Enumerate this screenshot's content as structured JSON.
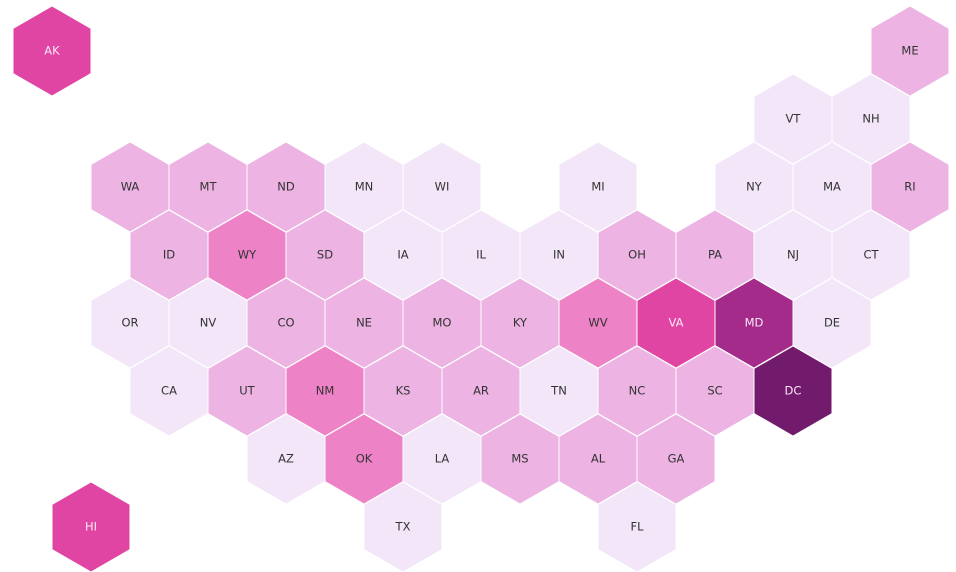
{
  "states": [
    {
      "label": "AK",
      "color": "#e045a3"
    },
    {
      "label": "ME",
      "color": "#ecb3e3"
    },
    {
      "label": "VT",
      "color": "#f2e6f8"
    },
    {
      "label": "NH",
      "color": "#f2e6f8"
    },
    {
      "label": "WA",
      "color": "#ecb3e3"
    },
    {
      "label": "MT",
      "color": "#ecb3e3"
    },
    {
      "label": "ND",
      "color": "#ecb3e3"
    },
    {
      "label": "MN",
      "color": "#f2e6f8"
    },
    {
      "label": "WI",
      "color": "#f2e6f8"
    },
    {
      "label": "MI",
      "color": "#f2e6f8"
    },
    {
      "label": "NY",
      "color": "#f2e6f8"
    },
    {
      "label": "MA",
      "color": "#f2e6f8"
    },
    {
      "label": "RI",
      "color": "#ecb3e3"
    },
    {
      "label": "ID",
      "color": "#ecb3e3"
    },
    {
      "label": "WY",
      "color": "#ee82c6"
    },
    {
      "label": "SD",
      "color": "#ecb3e3"
    },
    {
      "label": "IA",
      "color": "#f2e6f8"
    },
    {
      "label": "IL",
      "color": "#f2e6f8"
    },
    {
      "label": "IN",
      "color": "#f2e6f8"
    },
    {
      "label": "OH",
      "color": "#ecb3e3"
    },
    {
      "label": "PA",
      "color": "#ecb3e3"
    },
    {
      "label": "NJ",
      "color": "#f2e6f8"
    },
    {
      "label": "CT",
      "color": "#f2e6f8"
    },
    {
      "label": "OR",
      "color": "#f2e6f8"
    },
    {
      "label": "NV",
      "color": "#f2e6f8"
    },
    {
      "label": "CO",
      "color": "#ecb3e3"
    },
    {
      "label": "NE",
      "color": "#ecb3e3"
    },
    {
      "label": "MO",
      "color": "#ecb3e3"
    },
    {
      "label": "KY",
      "color": "#ecb3e3"
    },
    {
      "label": "WV",
      "color": "#ee82c6"
    },
    {
      "label": "VA",
      "color": "#e045a3"
    },
    {
      "label": "MD",
      "color": "#a52b8b"
    },
    {
      "label": "DE",
      "color": "#f2e6f8"
    },
    {
      "label": "CA",
      "color": "#f2e6f8"
    },
    {
      "label": "UT",
      "color": "#ecb3e3"
    },
    {
      "label": "NM",
      "color": "#ee82c6"
    },
    {
      "label": "KS",
      "color": "#ecb3e3"
    },
    {
      "label": "AR",
      "color": "#ecb3e3"
    },
    {
      "label": "TN",
      "color": "#f2e6f8"
    },
    {
      "label": "NC",
      "color": "#ecb3e3"
    },
    {
      "label": "SC",
      "color": "#ecb3e3"
    },
    {
      "label": "DC",
      "color": "#721a6c"
    },
    {
      "label": "AZ",
      "color": "#f2e6f8"
    },
    {
      "label": "OK",
      "color": "#ee82c6"
    },
    {
      "label": "LA",
      "color": "#f2e6f8"
    },
    {
      "label": "MS",
      "color": "#ecb3e3"
    },
    {
      "label": "AL",
      "color": "#ecb3e3"
    },
    {
      "label": "GA",
      "color": "#ecb3e3"
    },
    {
      "label": "HI",
      "color": "#e045a3"
    },
    {
      "label": "TX",
      "color": "#f2e6f8"
    },
    {
      "label": "FL",
      "color": "#f2e6f8"
    }
  ]
}
